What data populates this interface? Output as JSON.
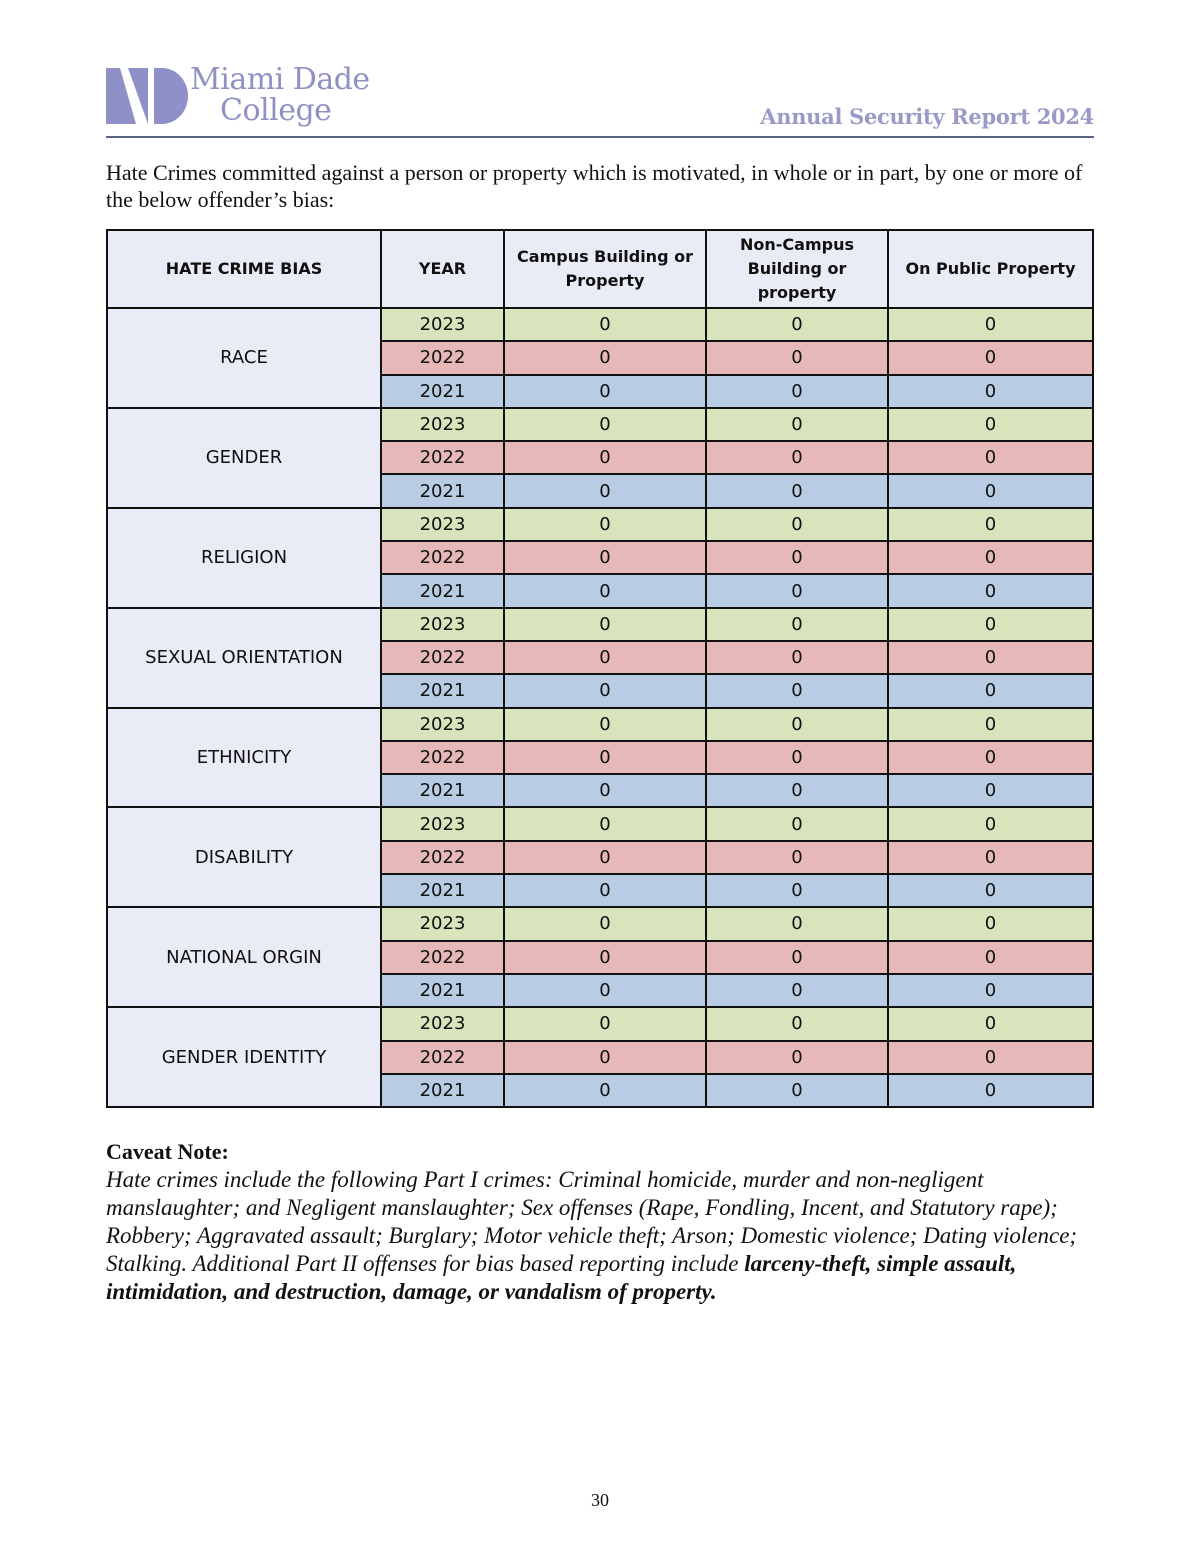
{
  "header": {
    "logo_text_line1": "Miami Dade",
    "logo_text_line2": "College",
    "report_title": "Annual Security Report 2024"
  },
  "intro": "Hate Crimes committed against a person or property which is motivated, in whole or in part, by one or more of the below offender’s bias:",
  "table": {
    "columns": [
      "HATE CRIME BIAS",
      "YEAR",
      "Campus Building or Property",
      "Non-Campus Building or property",
      "On Public Property"
    ],
    "row_colors": {
      "2023": "#d8e4bc",
      "2022": "#e6b8b7",
      "2021": "#b8cce4"
    },
    "groups": [
      {
        "bias": "RACE",
        "rows": [
          [
            "2023",
            "0",
            "0",
            "0"
          ],
          [
            "2022",
            "0",
            "0",
            "0"
          ],
          [
            "2021",
            "0",
            "0",
            "0"
          ]
        ]
      },
      {
        "bias": "GENDER",
        "rows": [
          [
            "2023",
            "0",
            "0",
            "0"
          ],
          [
            "2022",
            "0",
            "0",
            "0"
          ],
          [
            "2021",
            "0",
            "0",
            "0"
          ]
        ]
      },
      {
        "bias": "RELIGION",
        "rows": [
          [
            "2023",
            "0",
            "0",
            "0"
          ],
          [
            "2022",
            "0",
            "0",
            "0"
          ],
          [
            "2021",
            "0",
            "0",
            "0"
          ]
        ]
      },
      {
        "bias": "SEXUAL ORIENTATION",
        "rows": [
          [
            "2023",
            "0",
            "0",
            "0"
          ],
          [
            "2022",
            "0",
            "0",
            "0"
          ],
          [
            "2021",
            "0",
            "0",
            "0"
          ]
        ]
      },
      {
        "bias": "ETHNICITY",
        "rows": [
          [
            "2023",
            "0",
            "0",
            "0"
          ],
          [
            "2022",
            "0",
            "0",
            "0"
          ],
          [
            "2021",
            "0",
            "0",
            "0"
          ]
        ]
      },
      {
        "bias": "DISABILITY",
        "rows": [
          [
            "2023",
            "0",
            "0",
            "0"
          ],
          [
            "2022",
            "0",
            "0",
            "0"
          ],
          [
            "2021",
            "0",
            "0",
            "0"
          ]
        ]
      },
      {
        "bias": "NATIONAL ORGIN",
        "rows": [
          [
            "2023",
            "0",
            "0",
            "0"
          ],
          [
            "2022",
            "0",
            "0",
            "0"
          ],
          [
            "2021",
            "0",
            "0",
            "0"
          ]
        ]
      },
      {
        "bias": "GENDER IDENTITY",
        "rows": [
          [
            "2023",
            "0",
            "0",
            "0"
          ],
          [
            "2022",
            "0",
            "0",
            "0"
          ],
          [
            "2021",
            "0",
            "0",
            "0"
          ]
        ]
      }
    ]
  },
  "caveat": {
    "title": "Caveat Note:",
    "text": "Hate crimes include the following Part I crimes: Criminal homicide, murder and non-negligent manslaughter; and Negligent manslaughter; Sex offenses (Rape, Fondling, Incent, and Statutory rape); Robbery; Aggravated assault; Burglary; Motor vehicle theft; Arson; Domestic violence; Dating violence; Stalking.  Additional Part II offenses for bias based reporting include ",
    "bold_text": "larceny-theft, simple assault, intimidation, and destruction, damage, or vandalism of property."
  },
  "page_number": "30"
}
